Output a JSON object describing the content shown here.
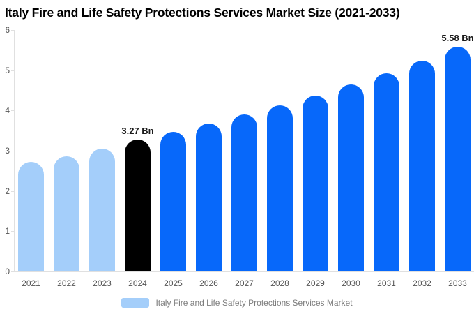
{
  "chart_data": {
    "type": "bar",
    "title": "Italy Fire and Life Safety Protections Services Market Size (2021-2033)",
    "categories": [
      "2021",
      "2022",
      "2023",
      "2024",
      "2025",
      "2026",
      "2027",
      "2028",
      "2029",
      "2030",
      "2031",
      "2032",
      "2033"
    ],
    "values": [
      2.72,
      2.87,
      3.05,
      3.27,
      3.46,
      3.67,
      3.9,
      4.13,
      4.37,
      4.64,
      4.92,
      5.24,
      5.58
    ],
    "bar_roles": [
      "historical",
      "historical",
      "historical",
      "base_year",
      "forecast",
      "forecast",
      "forecast",
      "forecast",
      "forecast",
      "forecast",
      "forecast",
      "forecast",
      "forecast"
    ],
    "data_labels": {
      "2024": "3.27 Bn",
      "2033": "5.58 Bn"
    },
    "unit": "Bn",
    "xlabel": "",
    "ylabel": "",
    "ylim": [
      0,
      6
    ],
    "yticks": [
      0,
      1,
      2,
      3,
      4,
      5,
      6
    ],
    "grid": false,
    "legend_position": "bottom"
  },
  "legend": {
    "label": "Italy Fire and Life Safety Protections Services Market"
  },
  "colors": {
    "historical": "#A4CEFA",
    "base_year": "#000000",
    "forecast": "#0768FA",
    "axis_line": "#E0E0E0",
    "axis_text": "#555555",
    "legend_text": "#7D7D7D",
    "data_label": "#1B1B1B",
    "title_text": "#000000"
  }
}
